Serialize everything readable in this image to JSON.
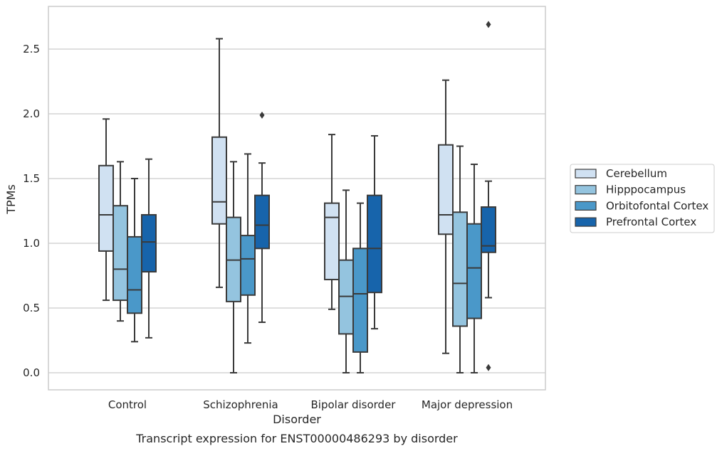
{
  "chart_data": {
    "type": "box",
    "caption": "Transcript expression for ENST00000486293 by disorder",
    "xlabel": "Disorder",
    "ylabel": "TPMs",
    "ylim": [
      -0.13,
      2.83
    ],
    "yticks": [
      "0.0",
      "0.5",
      "1.0",
      "1.5",
      "2.0",
      "2.5"
    ],
    "ytick_values": [
      0,
      0.5,
      1.0,
      1.5,
      2.0,
      2.5
    ],
    "grid": true,
    "legend_position": "right",
    "categories": [
      "Control",
      "Schizophrenia",
      "Bipolar disorder",
      "Major depression"
    ],
    "series": [
      {
        "name": "Cerebellum",
        "color": "#d0e1f2",
        "boxes": [
          {
            "whisker_low": 0.56,
            "q1": 0.94,
            "median": 1.22,
            "q3": 1.6,
            "whisker_high": 1.96,
            "outliers": []
          },
          {
            "whisker_low": 0.66,
            "q1": 1.15,
            "median": 1.32,
            "q3": 1.82,
            "whisker_high": 2.58,
            "outliers": []
          },
          {
            "whisker_low": 0.49,
            "q1": 0.72,
            "median": 1.2,
            "q3": 1.31,
            "whisker_high": 1.84,
            "outliers": []
          },
          {
            "whisker_low": 0.15,
            "q1": 1.07,
            "median": 1.22,
            "q3": 1.76,
            "whisker_high": 2.26,
            "outliers": []
          }
        ]
      },
      {
        "name": "Hipppocampus",
        "color": "#94c4df",
        "boxes": [
          {
            "whisker_low": 0.4,
            "q1": 0.56,
            "median": 0.8,
            "q3": 1.29,
            "whisker_high": 1.63,
            "outliers": []
          },
          {
            "whisker_low": 0.0,
            "q1": 0.55,
            "median": 0.87,
            "q3": 1.2,
            "whisker_high": 1.63,
            "outliers": []
          },
          {
            "whisker_low": 0.0,
            "q1": 0.3,
            "median": 0.59,
            "q3": 0.87,
            "whisker_high": 1.41,
            "outliers": []
          },
          {
            "whisker_low": 0.0,
            "q1": 0.36,
            "median": 0.69,
            "q3": 1.24,
            "whisker_high": 1.75,
            "outliers": []
          }
        ]
      },
      {
        "name": "Orbitofontal Cortex",
        "color": "#4a98c9",
        "boxes": [
          {
            "whisker_low": 0.24,
            "q1": 0.46,
            "median": 0.64,
            "q3": 1.05,
            "whisker_high": 1.5,
            "outliers": []
          },
          {
            "whisker_low": 0.23,
            "q1": 0.6,
            "median": 0.88,
            "q3": 1.06,
            "whisker_high": 1.69,
            "outliers": []
          },
          {
            "whisker_low": 0.0,
            "q1": 0.16,
            "median": 0.61,
            "q3": 0.96,
            "whisker_high": 1.31,
            "outliers": []
          },
          {
            "whisker_low": 0.0,
            "q1": 0.42,
            "median": 0.81,
            "q3": 1.15,
            "whisker_high": 1.61,
            "outliers": []
          }
        ]
      },
      {
        "name": "Prefrontal Cortex",
        "color": "#1764ab",
        "boxes": [
          {
            "whisker_low": 0.27,
            "q1": 0.78,
            "median": 1.01,
            "q3": 1.22,
            "whisker_high": 1.65,
            "outliers": []
          },
          {
            "whisker_low": 0.39,
            "q1": 0.96,
            "median": 1.14,
            "q3": 1.37,
            "whisker_high": 1.62,
            "outliers": [
              1.99
            ]
          },
          {
            "whisker_low": 0.34,
            "q1": 0.62,
            "median": 0.96,
            "q3": 1.37,
            "whisker_high": 1.83,
            "outliers": []
          },
          {
            "whisker_low": 0.58,
            "q1": 0.93,
            "median": 0.98,
            "q3": 1.28,
            "whisker_high": 1.48,
            "outliers": [
              2.69,
              0.04
            ]
          }
        ]
      }
    ]
  }
}
